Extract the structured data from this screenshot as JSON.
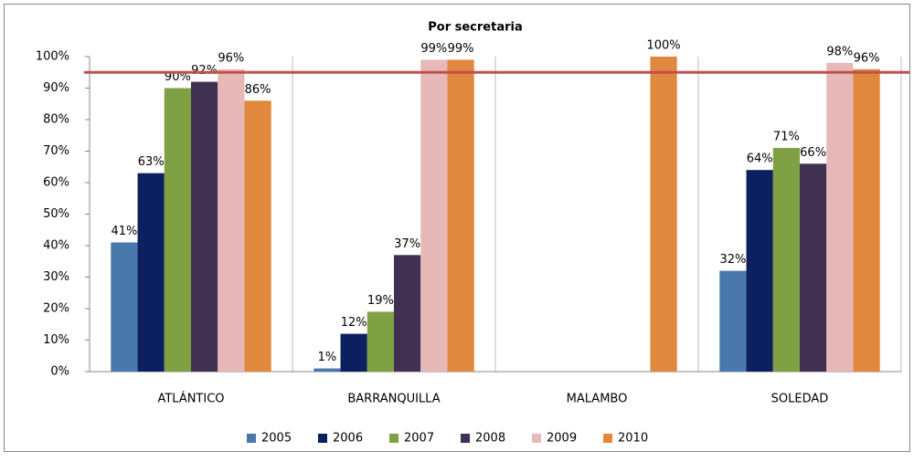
{
  "chart_data": {
    "type": "bar",
    "title": "Por secretaria",
    "categories": [
      "ATLÁNTICO",
      "BARRANQUILLA",
      "MALAMBO",
      "SOLEDAD"
    ],
    "series": [
      {
        "name": "2005",
        "color": "#4a78ad",
        "values": [
          41,
          1,
          null,
          32
        ],
        "value_labels": [
          "41%",
          "1%",
          null,
          "32%"
        ]
      },
      {
        "name": "2006",
        "color": "#0c1f5e",
        "values": [
          63,
          12,
          null,
          64
        ],
        "value_labels": [
          "63%",
          "12%",
          null,
          "64%"
        ]
      },
      {
        "name": "2007",
        "color": "#80a044",
        "values": [
          90,
          19,
          null,
          71
        ],
        "value_labels": [
          "90%",
          "19%",
          null,
          "71%"
        ]
      },
      {
        "name": "2008",
        "color": "#403152",
        "values": [
          92,
          37,
          null,
          66
        ],
        "value_labels": [
          "92%",
          "37%",
          null,
          "66%"
        ]
      },
      {
        "name": "2009",
        "color": "#e6b9b8",
        "values": [
          96,
          99,
          null,
          98
        ],
        "value_labels": [
          "96%",
          "99%",
          null,
          "98%"
        ]
      },
      {
        "name": "2010",
        "color": "#e0883d",
        "values": [
          86,
          99,
          100,
          96
        ],
        "value_labels": [
          "86%",
          "99%",
          "100%",
          "96%"
        ]
      }
    ],
    "ylim": [
      0,
      100
    ],
    "yticks": [
      {
        "value": 0,
        "label": "0%"
      },
      {
        "value": 10,
        "label": "10%"
      },
      {
        "value": 20,
        "label": "20%"
      },
      {
        "value": 30,
        "label": "30%"
      },
      {
        "value": 40,
        "label": "40%"
      },
      {
        "value": 50,
        "label": "50%"
      },
      {
        "value": 60,
        "label": "60%"
      },
      {
        "value": 70,
        "label": "70%"
      },
      {
        "value": 80,
        "label": "80%"
      },
      {
        "value": 90,
        "label": "90%"
      },
      {
        "value": 100,
        "label": "100%"
      }
    ],
    "reference_line": {
      "value": 95,
      "color": "#c0504d"
    },
    "legend": "bottom"
  }
}
